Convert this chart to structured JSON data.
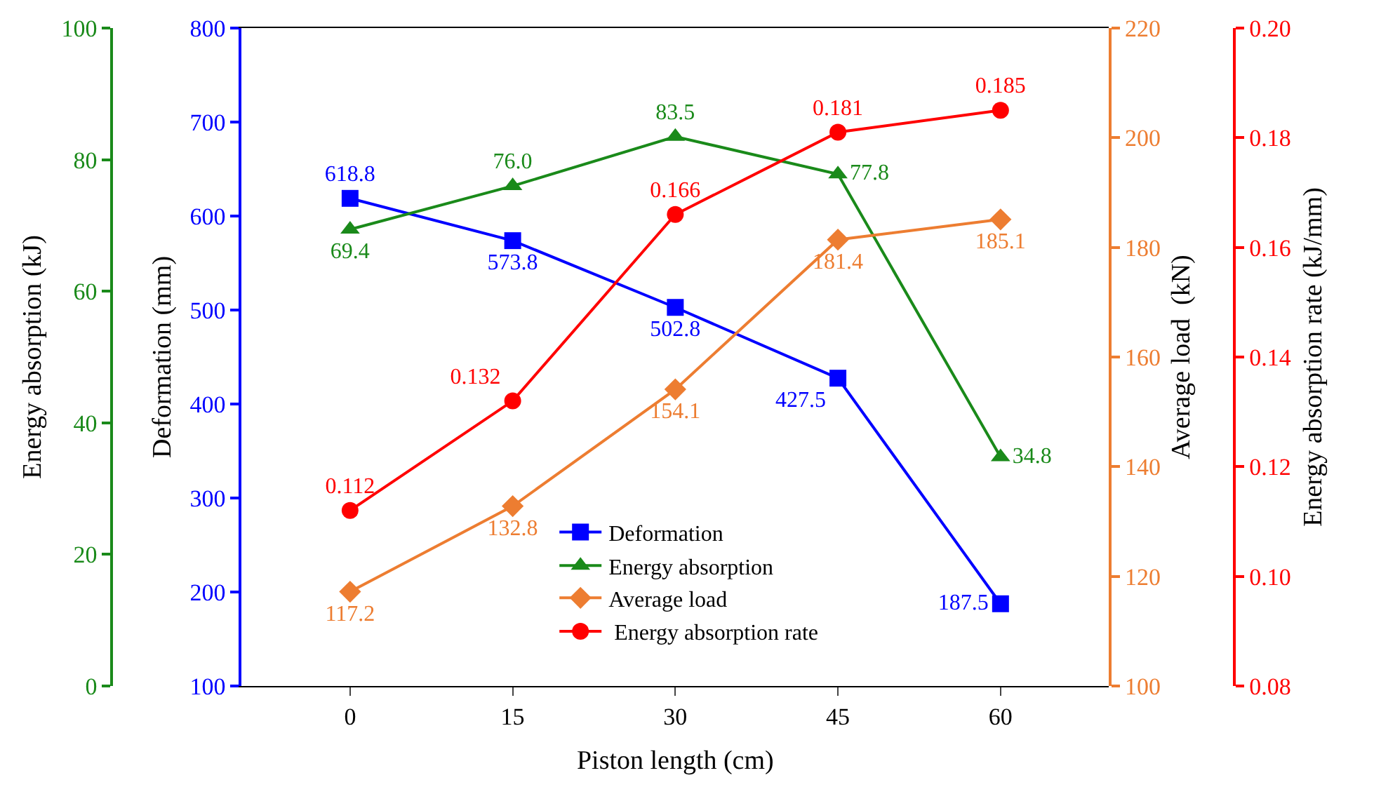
{
  "chart_data": [
    {
      "type": "line",
      "xlabel": "Piston length (cm)",
      "x": [
        0,
        15,
        30,
        45,
        60
      ],
      "xlim": [
        -10,
        70
      ],
      "xticks": [
        0,
        15,
        30,
        45,
        60
      ],
      "ylabel": "Deformation (mm)",
      "ylim": [
        100,
        800
      ],
      "yticks": [
        100,
        200,
        300,
        400,
        500,
        600,
        700,
        800
      ],
      "y2label": "Energy absorption (kJ)",
      "y2lim": [
        0,
        100
      ],
      "y2ticks": [
        0,
        20,
        40,
        60,
        80,
        100
      ],
      "grid": false,
      "legend": "bottom",
      "line_style": "solid",
      "series": [
        {
          "name": "Deformation",
          "color": "#0000ff",
          "marker": "square",
          "values": [
            618.8,
            573.8,
            502.8,
            427.5,
            187.5
          ],
          "value_labels": [
            "618.8",
            "573.8",
            "502.8",
            "427.5",
            "187.5"
          ]
        },
        {
          "name": "Energy absorption",
          "color": "#1a8a1a",
          "marker": "triangle",
          "axis": "y2",
          "values": [
            69.4,
            76.0,
            83.5,
            77.8,
            34.8
          ],
          "value_labels": [
            "69.4",
            "76.0",
            "83.5",
            "77.8",
            "34.8"
          ]
        }
      ]
    },
    {
      "type": "line",
      "x": [
        0,
        15,
        30,
        45,
        60
      ],
      "xlim": [
        -10,
        70
      ],
      "xticks": [
        0,
        15,
        30,
        45,
        60
      ],
      "tick_labels": "y",
      "ylabel": "Average load  (kN)",
      "ylim": [
        100,
        220
      ],
      "yticks": [
        100,
        120,
        140,
        160,
        180,
        200,
        220
      ],
      "y2label": "Energy absorption rate (kJ/mm)",
      "y2lim": [
        0.08,
        0.2
      ],
      "y2ticks": [
        {
          "value": 0.08,
          "label": "0.08"
        },
        {
          "value": 0.1,
          "label": "0.10"
        },
        {
          "value": 0.12,
          "label": "0.12"
        },
        {
          "value": 0.14,
          "label": "0.14"
        },
        {
          "value": 0.16,
          "label": "0.16"
        },
        {
          "value": 0.18,
          "label": "0.18"
        },
        {
          "value": 0.2,
          "label": "0.20"
        }
      ],
      "grid": false,
      "legend": "bottom",
      "line_style": "solid",
      "series": [
        {
          "name": "Average load",
          "color": "#ed7d31",
          "marker": "diamond",
          "values": [
            117.2,
            132.8,
            154.1,
            181.4,
            185.1
          ],
          "value_labels": [
            "117.2",
            "132.8",
            "154.1",
            "181.4",
            "185.1"
          ]
        },
        {
          "name": " Energy absorption rate",
          "color": "#ff0000",
          "marker": "circle",
          "axis": "y2",
          "values": [
            0.112,
            0.132,
            0.166,
            0.181,
            0.185
          ],
          "value_labels": [
            "0.112",
            "0.132",
            "0.166",
            "0.181",
            "0.185"
          ]
        }
      ]
    }
  ]
}
